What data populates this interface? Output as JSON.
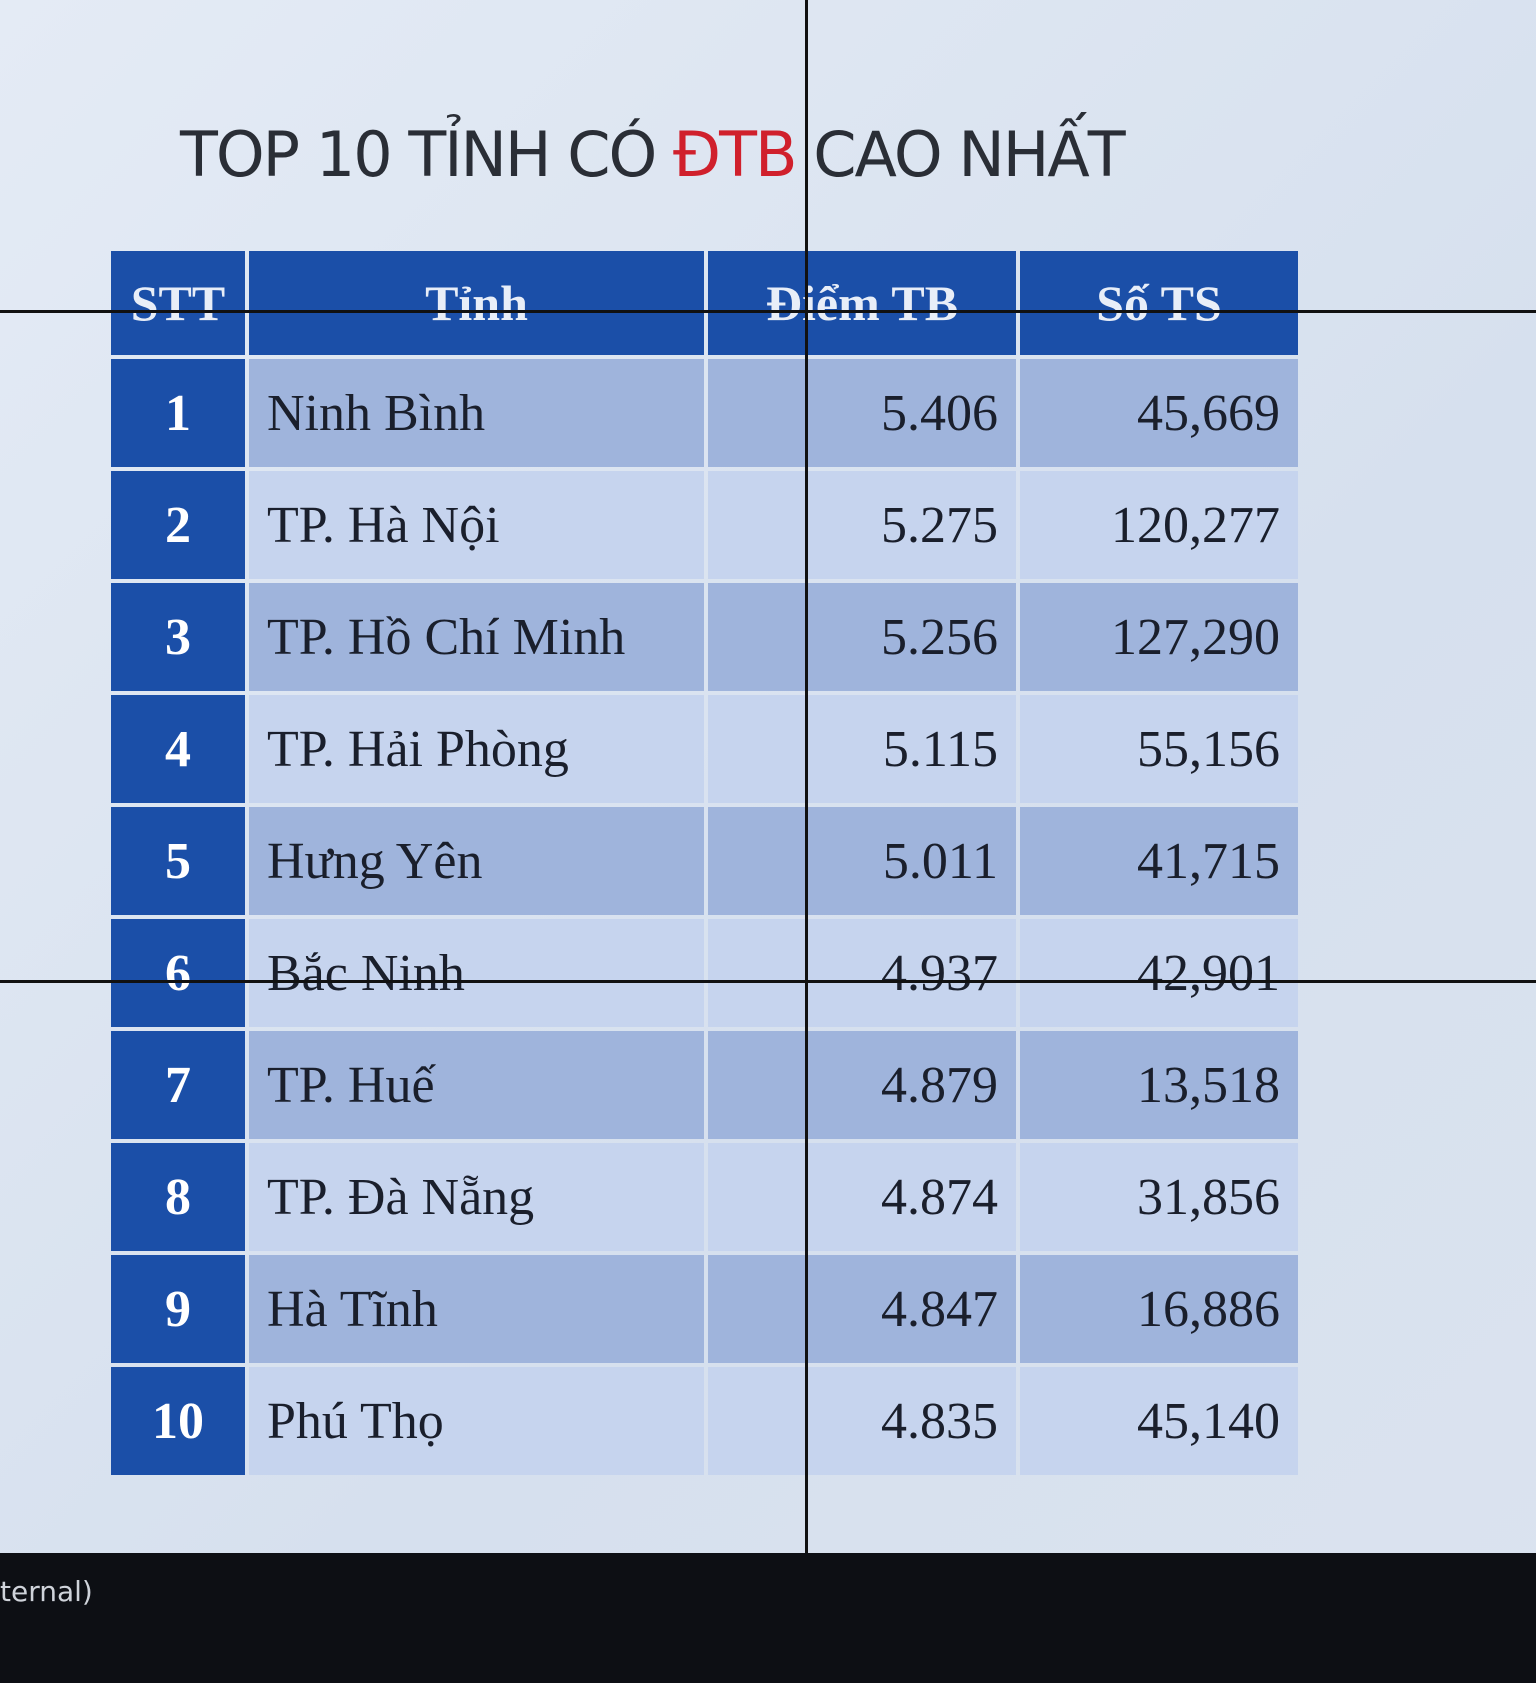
{
  "header": {
    "title": {
      "before": "TOP 10 TỈNH CÓ ",
      "highlight": "ĐTB",
      "after": " CAO NHẤT"
    }
  },
  "table": {
    "columns": [
      "STT",
      "Tỉnh",
      "Điểm TB",
      "Số TS"
    ],
    "rows": [
      [
        "1",
        "Ninh Bình",
        "5.406",
        "45,669"
      ],
      [
        "2",
        "TP. Hà Nội",
        "5.275",
        "120,277"
      ],
      [
        "3",
        "TP. Hồ Chí Minh",
        "5.256",
        "127,290"
      ],
      [
        "4",
        "TP. Hải Phòng",
        "5.115",
        "55,156"
      ],
      [
        "5",
        "Hưng Yên",
        "5.011",
        "41,715"
      ],
      [
        "6",
        "Bắc Ninh",
        "4.937",
        "42,901"
      ],
      [
        "7",
        "TP. Huế",
        "4.879",
        "13,518"
      ],
      [
        "8",
        "TP. Đà Nẵng",
        "4.874",
        "31,856"
      ],
      [
        "9",
        "Hà Tĩnh",
        "4.847",
        "16,886"
      ],
      [
        "10",
        "Phú Thọ",
        "4.835",
        "45,140"
      ]
    ]
  },
  "footer": {
    "text": "ternal)"
  }
}
